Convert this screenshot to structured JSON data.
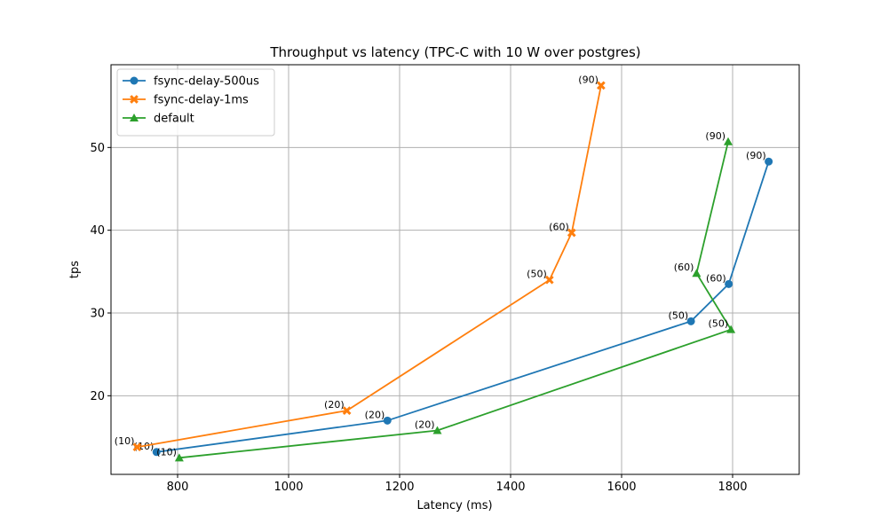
{
  "chart_data": {
    "type": "line",
    "title": "Throughput vs latency (TPC-C with 10 W over postgres)",
    "xlabel": "Latency (ms)",
    "ylabel": "tps",
    "xlim": [
      680,
      1920
    ],
    "ylim": [
      10.5,
      60
    ],
    "xticks": [
      800,
      1000,
      1200,
      1400,
      1600,
      1800
    ],
    "yticks": [
      20,
      30,
      40,
      50
    ],
    "grid": true,
    "legend_position": "top-left",
    "series": [
      {
        "name": "fsync-delay-500us",
        "color": "#1f77b4",
        "marker": "circle",
        "points": [
          {
            "x": 762,
            "y": 13.2,
            "label": "(10)"
          },
          {
            "x": 1178,
            "y": 17.0,
            "label": "(20)"
          },
          {
            "x": 1725,
            "y": 29.0,
            "label": "(50)"
          },
          {
            "x": 1793,
            "y": 33.5,
            "label": "(60)"
          },
          {
            "x": 1865,
            "y": 48.3,
            "label": "(90)"
          }
        ]
      },
      {
        "name": "fsync-delay-1ms",
        "color": "#ff7f0e",
        "marker": "x",
        "points": [
          {
            "x": 727,
            "y": 13.8,
            "label": "(10)"
          },
          {
            "x": 1105,
            "y": 18.2,
            "label": "(20)"
          },
          {
            "x": 1470,
            "y": 34.0,
            "label": "(50)"
          },
          {
            "x": 1510,
            "y": 39.7,
            "label": "(60)"
          },
          {
            "x": 1563,
            "y": 57.5,
            "label": "(90)"
          }
        ]
      },
      {
        "name": "default",
        "color": "#2ca02c",
        "marker": "triangle",
        "points": [
          {
            "x": 803,
            "y": 12.5,
            "label": "(10)"
          },
          {
            "x": 1268,
            "y": 15.8,
            "label": "(20)"
          },
          {
            "x": 1797,
            "y": 28.0,
            "label": "(50)"
          },
          {
            "x": 1735,
            "y": 34.8,
            "label": "(60)"
          },
          {
            "x": 1792,
            "y": 50.7,
            "label": "(90)"
          }
        ]
      }
    ]
  }
}
